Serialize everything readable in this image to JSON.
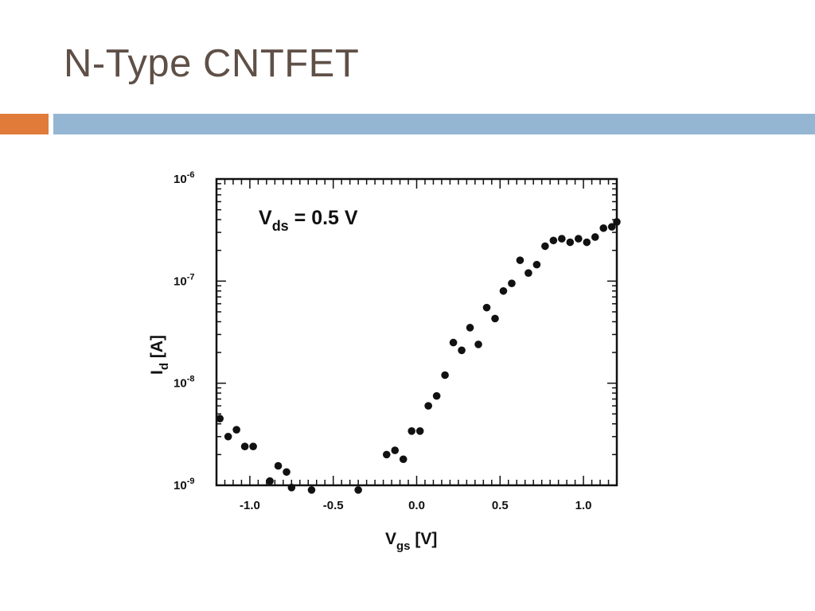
{
  "slide": {
    "title": "N-Type CNTFET",
    "accent_colors": {
      "orange": "#e07b39",
      "blue": "#94b6d2"
    }
  },
  "chart_data": {
    "type": "scatter",
    "title": "",
    "xlabel_main": "V",
    "xlabel_sub": "gs",
    "xlabel_unit": " [V]",
    "ylabel_main": "I",
    "ylabel_sub": "d",
    "ylabel_unit": " [A]",
    "annotation_main": "V",
    "annotation_sub": "ds",
    "annotation_rest": " = 0.5 V",
    "xlim": [
      -1.2,
      1.2
    ],
    "ylim": [
      1e-09,
      1e-06
    ],
    "y_scale": "log",
    "x_ticks": [
      {
        "value": -1.0,
        "label": "-1.0"
      },
      {
        "value": -0.5,
        "label": "-0.5"
      },
      {
        "value": 0.0,
        "label": "0.0"
      },
      {
        "value": 0.5,
        "label": "0.5"
      },
      {
        "value": 1.0,
        "label": "1.0"
      }
    ],
    "y_ticks": [
      {
        "value": 1e-09,
        "base": "10",
        "exp": "-9"
      },
      {
        "value": 1e-08,
        "base": "10",
        "exp": "-8"
      },
      {
        "value": 1e-07,
        "base": "10",
        "exp": "-7"
      },
      {
        "value": 1e-06,
        "base": "10",
        "exp": "-6"
      }
    ],
    "series": [
      {
        "color": "#111111",
        "points": [
          [
            -1.18,
            4.5e-09
          ],
          [
            -1.13,
            3e-09
          ],
          [
            -1.08,
            3.5e-09
          ],
          [
            -1.03,
            2.4e-09
          ],
          [
            -0.98,
            2.4e-09
          ],
          [
            -0.88,
            1.1e-09
          ],
          [
            -0.83,
            1.55e-09
          ],
          [
            -0.78,
            1.35e-09
          ],
          [
            -0.75,
            9.5e-10
          ],
          [
            -0.63,
            9e-10
          ],
          [
            -0.35,
            9e-10
          ],
          [
            -0.18,
            2e-09
          ],
          [
            -0.13,
            2.2e-09
          ],
          [
            -0.08,
            1.8e-09
          ],
          [
            -0.03,
            3.4e-09
          ],
          [
            0.02,
            3.4e-09
          ],
          [
            0.07,
            6e-09
          ],
          [
            0.12,
            7.5e-09
          ],
          [
            0.17,
            1.2e-08
          ],
          [
            0.22,
            2.5e-08
          ],
          [
            0.27,
            2.1e-08
          ],
          [
            0.32,
            3.5e-08
          ],
          [
            0.37,
            2.4e-08
          ],
          [
            0.42,
            5.5e-08
          ],
          [
            0.47,
            4.3e-08
          ],
          [
            0.52,
            8e-08
          ],
          [
            0.57,
            9.5e-08
          ],
          [
            0.62,
            1.6e-07
          ],
          [
            0.67,
            1.2e-07
          ],
          [
            0.72,
            1.45e-07
          ],
          [
            0.77,
            2.2e-07
          ],
          [
            0.82,
            2.5e-07
          ],
          [
            0.87,
            2.6e-07
          ],
          [
            0.92,
            2.4e-07
          ],
          [
            0.97,
            2.6e-07
          ],
          [
            1.02,
            2.4e-07
          ],
          [
            1.07,
            2.7e-07
          ],
          [
            1.12,
            3.3e-07
          ],
          [
            1.17,
            3.4e-07
          ],
          [
            1.2,
            3.8e-07
          ]
        ]
      }
    ]
  }
}
